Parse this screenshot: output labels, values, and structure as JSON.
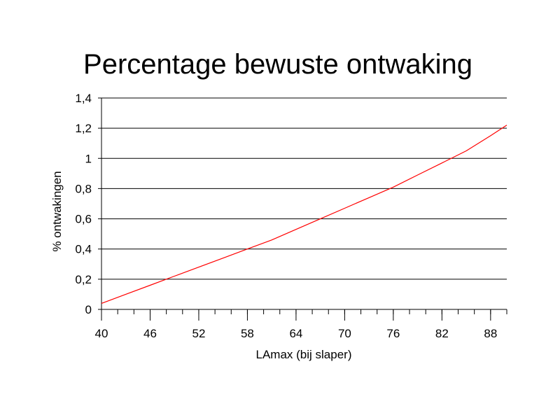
{
  "chart_data": {
    "type": "line",
    "title": "Percentage bewuste ontwaking",
    "xlabel": "LAmax (bij slaper)",
    "ylabel": "% ontwakingen",
    "xlim": [
      40,
      90
    ],
    "ylim": [
      0,
      1.4
    ],
    "x_tick_labels": [
      "40",
      "46",
      "52",
      "58",
      "64",
      "70",
      "76",
      "82",
      "88"
    ],
    "y_tick_labels": [
      "0",
      "0,2",
      "0,4",
      "0,6",
      "0,8",
      "1",
      "1,2",
      "1,4"
    ],
    "grid": "horizontal",
    "line_color": "#ff0000",
    "series": [
      {
        "x": [
          40,
          43,
          46,
          49,
          52,
          55,
          58,
          61,
          64,
          67,
          70,
          73,
          76,
          79,
          82,
          85,
          88,
          90
        ],
        "y": [
          0.04,
          0.1,
          0.16,
          0.22,
          0.28,
          0.34,
          0.4,
          0.46,
          0.53,
          0.6,
          0.67,
          0.74,
          0.81,
          0.89,
          0.97,
          1.05,
          1.15,
          1.22
        ]
      }
    ]
  }
}
